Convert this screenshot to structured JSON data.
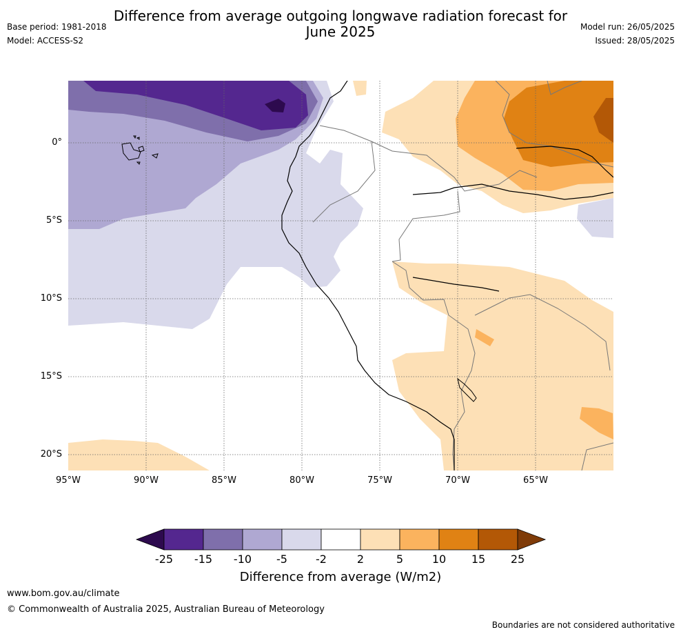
{
  "title_line1": "Difference from average outgoing longwave radiation forecast for",
  "title_line2": "June 2025",
  "meta_left": [
    "Base period: 1981-2018",
    "Model: ACCESS-S2"
  ],
  "meta_right": [
    "Model run: 26/05/2025",
    "Issued: 28/05/2025"
  ],
  "map": {
    "x_ticks": [
      {
        "value": -95,
        "label": "95°W"
      },
      {
        "value": -90,
        "label": "90°W"
      },
      {
        "value": -85,
        "label": "85°W"
      },
      {
        "value": -80,
        "label": "80°W"
      },
      {
        "value": -75,
        "label": "75°W"
      },
      {
        "value": -70,
        "label": "70°W"
      },
      {
        "value": -65,
        "label": "65°W"
      }
    ],
    "y_ticks": [
      {
        "value": 0,
        "label": "0°"
      },
      {
        "value": -5,
        "label": "5°S"
      },
      {
        "value": -10,
        "label": "10°S"
      },
      {
        "value": -15,
        "label": "15°S"
      },
      {
        "value": -20,
        "label": "20°S"
      }
    ],
    "lon_range": [
      -95,
      -60
    ],
    "lat_range": [
      -21,
      4
    ]
  },
  "colorbar": {
    "ticks": [
      "-25",
      "-15",
      "-10",
      "-5",
      "-2",
      "2",
      "5",
      "10",
      "15",
      "25"
    ],
    "colors": [
      "#2d0a4e",
      "#54278f",
      "#7f6fab",
      "#afa8d2",
      "#d9d9eb",
      "#ffffff",
      "#fde0b6",
      "#fbb35e",
      "#e08214",
      "#b35806",
      "#7f3b08"
    ],
    "label": "Difference from average (W/m2)"
  },
  "footer": {
    "url": "www.bom.gov.au/climate",
    "copyright": "© Commonwealth of Australia 2025, Australian Bureau of Meteorology",
    "disclaimer": "Boundaries are not considered authoritative"
  }
}
